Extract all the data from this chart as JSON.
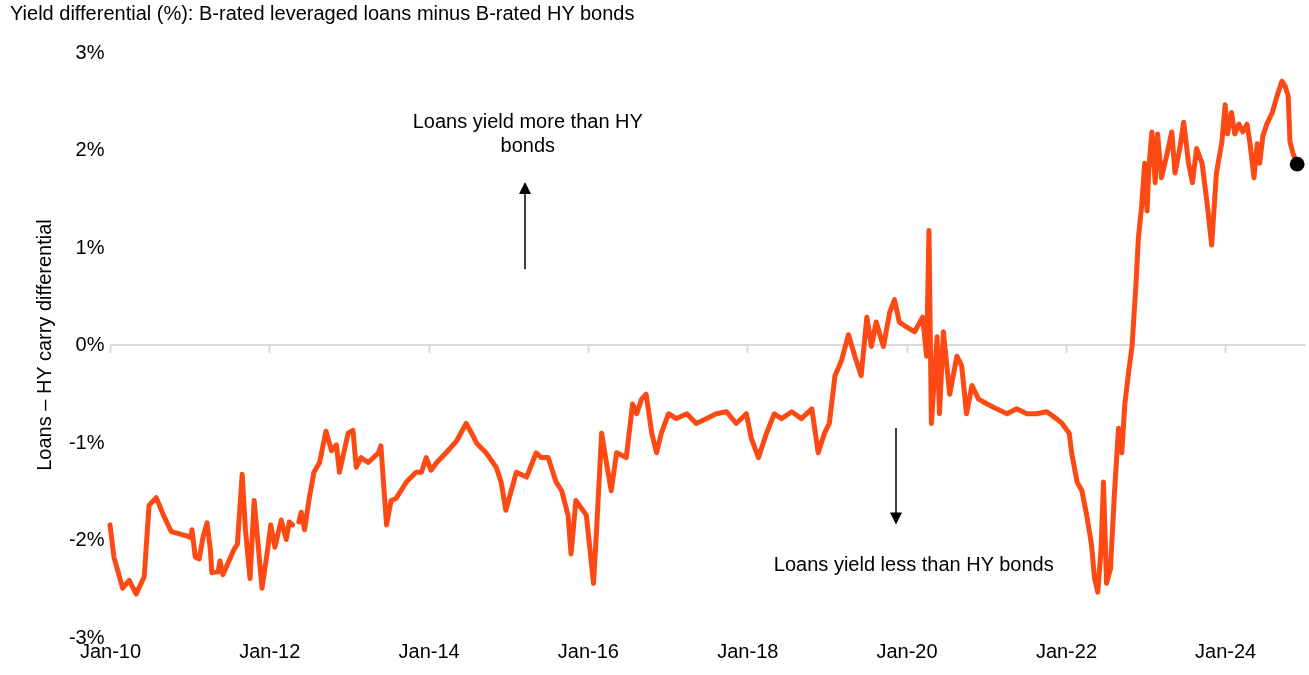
{
  "chart_data": {
    "type": "line",
    "title": "Yield differential (%): B-rated leveraged loans minus B-rated HY bonds",
    "ylabel": "Loans – HY carry differential",
    "annotations": [
      "Loans yield more than HY bonds",
      "Loans yield less than HY bonds"
    ],
    "xlim": [
      "2010-01-01",
      "2025-01-01"
    ],
    "xticks": [
      {
        "value": "2010-01-01",
        "label": "Jan-10"
      },
      {
        "value": "2012-01-01",
        "label": "Jan-12"
      },
      {
        "value": "2014-01-01",
        "label": "Jan-14"
      },
      {
        "value": "2016-01-01",
        "label": "Jan-16"
      },
      {
        "value": "2018-01-01",
        "label": "Jan-18"
      },
      {
        "value": "2020-01-01",
        "label": "Jan-20"
      },
      {
        "value": "2022-01-01",
        "label": "Jan-22"
      },
      {
        "value": "2024-01-01",
        "label": "Jan-24"
      }
    ],
    "ylim": [
      -3,
      3
    ],
    "yticks": [
      {
        "value": -3,
        "label": "-3%"
      },
      {
        "value": -2,
        "label": "-2%"
      },
      {
        "value": -1,
        "label": "-1%"
      },
      {
        "value": 0,
        "label": "0%"
      },
      {
        "value": 1,
        "label": "1%"
      },
      {
        "value": 2,
        "label": "2%"
      },
      {
        "value": 3,
        "label": "3%"
      }
    ],
    "series": [
      {
        "color": "#fd4a14",
        "x": [
          "2010-01-01",
          "2010-01-19",
          "2010-02-28",
          "2010-03-30",
          "2010-05-01",
          "2010-06-07",
          "2010-06-29",
          "2010-08-01",
          "2010-09-03",
          "2010-10-09",
          "2010-12-14",
          "2011-01-08",
          "2011-01-12",
          "2011-01-27",
          "2011-02-14",
          "2011-03-04",
          "2011-03-22",
          "2011-04-06",
          "2011-04-13",
          "2011-05-12",
          "2011-05-20",
          "2011-06-03",
          "2011-07-24",
          "2011-08-08",
          "2011-08-30",
          "2011-09-14",
          "2011-10-05",
          "2011-10-24",
          "2011-11-29",
          "2011-12-25",
          "2012-01-08",
          "2012-01-27",
          "2012-02-25",
          "2012-03-19",
          "2012-04-02",
          "2012-04-17",
          "2012-05-01",
          "2012-05-16",
          "2012-05-27",
          "2012-06-11",
          "2012-07-03",
          "2012-07-24",
          "2012-08-19",
          "2012-09-17",
          "2012-10-13",
          "2012-11-04",
          "2012-11-18",
          "2012-12-28",
          "2013-01-19",
          "2013-02-03",
          "2013-02-25",
          "2013-03-30",
          "2013-05-16",
          "2013-05-27",
          "2013-06-22",
          "2013-07-13",
          "2013-08-04",
          "2013-09-21",
          "2013-11-04",
          "2013-11-29",
          "2013-12-21",
          "2014-01-12",
          "2014-02-07",
          "2014-03-22",
          "2014-05-09",
          "2014-06-22",
          "2014-07-17",
          "2014-08-08",
          "2014-09-21",
          "2014-11-07",
          "2014-11-29",
          "2014-12-21",
          "2015-02-07",
          "2015-03-26",
          "2015-05-09",
          "2015-05-31",
          "2015-07-03",
          "2015-08-08",
          "2015-09-03",
          "2015-10-02",
          "2015-10-16",
          "2015-11-07",
          "2015-12-25",
          "2016-01-27",
          "2016-02-10",
          "2016-03-04",
          "2016-03-26",
          "2016-04-17",
          "2016-05-12",
          "2016-06-25",
          "2016-07-24",
          "2016-08-12",
          "2016-09-03",
          "2016-09-24",
          "2016-10-20",
          "2016-11-11",
          "2016-12-03",
          "2017-01-05",
          "2017-02-10",
          "2017-03-30",
          "2017-05-12",
          "2017-06-29",
          "2017-08-12",
          "2017-09-28",
          "2017-11-11",
          "2017-12-28",
          "2018-01-19",
          "2018-02-21",
          "2018-03-30",
          "2018-05-05",
          "2018-06-07",
          "2018-07-24",
          "2018-09-06",
          "2018-10-24",
          "2018-11-22",
          "2018-12-21",
          "2019-01-12",
          "2019-02-07",
          "2019-03-08",
          "2019-04-10",
          "2019-05-09",
          "2019-06-07",
          "2019-07-03",
          "2019-07-24",
          "2019-08-15",
          "2019-09-17",
          "2019-10-16",
          "2019-11-07",
          "2019-11-29",
          "2020-01-01",
          "2020-02-07",
          "2020-03-15",
          "2020-04-02",
          "2020-04-13",
          "2020-04-24",
          "2020-05-20",
          "2020-05-31",
          "2020-06-18",
          "2020-07-17",
          "2020-08-19",
          "2020-09-10",
          "2020-10-02",
          "2020-10-27",
          "2020-11-26",
          "2021-01-05",
          "2021-02-17",
          "2021-04-06",
          "2021-05-20",
          "2021-07-06",
          "2021-08-19",
          "2021-10-05",
          "2021-11-18",
          "2021-12-14",
          "2022-01-16",
          "2022-01-27",
          "2022-02-21",
          "2022-03-15",
          "2022-04-06",
          "2022-04-28",
          "2022-05-12",
          "2022-05-27",
          "2022-06-11",
          "2022-06-22",
          "2022-07-06",
          "2022-07-24",
          "2022-08-12",
          "2022-08-30",
          "2022-09-14",
          "2022-09-28",
          "2022-10-16",
          "2022-10-31",
          "2022-11-18",
          "2022-11-29",
          "2022-12-14",
          "2022-12-28",
          "2023-01-08",
          "2023-01-16",
          "2023-01-30",
          "2023-02-14",
          "2023-02-25",
          "2023-03-15",
          "2023-04-10",
          "2023-05-01",
          "2023-05-16",
          "2023-06-07",
          "2023-06-25",
          "2023-07-17",
          "2023-08-04",
          "2023-08-23",
          "2023-09-17",
          "2023-10-09",
          "2023-10-31",
          "2023-11-22",
          "2023-12-17",
          "2024-01-01",
          "2024-01-12",
          "2024-01-30",
          "2024-02-14",
          "2024-03-04",
          "2024-03-22",
          "2024-04-10",
          "2024-04-24",
          "2024-05-12",
          "2024-05-27",
          "2024-06-07",
          "2024-06-22",
          "2024-07-10",
          "2024-08-04",
          "2024-08-26",
          "2024-09-17",
          "2024-10-02",
          "2024-10-16",
          "2024-10-24",
          "2024-11-07",
          "2024-11-26"
        ],
        "values": [
          -1.85,
          -2.18,
          -2.5,
          -2.42,
          -2.56,
          -2.38,
          -1.65,
          -1.57,
          -1.75,
          -1.92,
          -1.96,
          -1.98,
          -1.9,
          -2.18,
          -2.2,
          -1.97,
          -1.83,
          -2.1,
          -2.34,
          -2.33,
          -2.22,
          -2.36,
          -2.1,
          -2.05,
          -1.33,
          -1.9,
          -2.4,
          -1.6,
          -2.5,
          -2.1,
          -1.85,
          -2.08,
          -1.8,
          -2.0,
          -1.82,
          -1.85,
          null,
          -1.82,
          -1.72,
          -1.9,
          -1.57,
          -1.31,
          -1.21,
          -0.89,
          -1.09,
          -1.03,
          -1.31,
          -0.91,
          -0.88,
          -1.26,
          -1.16,
          -1.21,
          -1.11,
          -1.04,
          -1.85,
          -1.6,
          -1.58,
          -1.41,
          -1.31,
          -1.31,
          -1.16,
          -1.29,
          -1.21,
          -1.11,
          -0.99,
          -0.81,
          -0.91,
          -1.01,
          -1.11,
          -1.26,
          -1.41,
          -1.7,
          -1.31,
          -1.36,
          -1.11,
          -1.16,
          -1.16,
          -1.41,
          -1.5,
          -1.75,
          -2.15,
          -1.6,
          -1.75,
          -2.45,
          -1.9,
          -0.91,
          -1.21,
          -1.5,
          -1.11,
          -1.16,
          -0.61,
          -0.71,
          -0.56,
          -0.51,
          -0.91,
          -1.11,
          -0.91,
          -0.71,
          -0.76,
          -0.71,
          -0.81,
          -0.76,
          -0.71,
          -0.69,
          -0.81,
          -0.71,
          -0.96,
          -1.16,
          -0.91,
          -0.71,
          -0.76,
          -0.69,
          -0.76,
          -0.66,
          -1.11,
          -0.91,
          -0.81,
          -0.32,
          -0.17,
          0.1,
          -0.12,
          -0.32,
          0.28,
          -0.02,
          0.23,
          -0.02,
          0.33,
          0.46,
          0.23,
          0.18,
          0.13,
          0.28,
          -0.12,
          1.17,
          -0.81,
          0.08,
          -0.71,
          0.13,
          -0.51,
          -0.12,
          -0.22,
          -0.71,
          -0.42,
          -0.56,
          -0.61,
          -0.66,
          -0.71,
          -0.66,
          -0.71,
          -0.71,
          -0.69,
          -0.76,
          -0.81,
          -0.91,
          -1.11,
          -1.41,
          -1.5,
          -1.75,
          -2.05,
          -2.4,
          -2.54,
          -2.1,
          -1.41,
          -2.45,
          -2.3,
          -1.5,
          -0.86,
          -1.11,
          -0.61,
          -0.27,
          -0.02,
          0.62,
          1.09,
          1.42,
          1.86,
          1.37,
          1.81,
          2.18,
          1.66,
          2.16,
          1.71,
          1.96,
          2.18,
          1.76,
          2.01,
          2.28,
          1.86,
          1.66,
          2.01,
          1.86,
          1.47,
          1.02,
          1.76,
          2.08,
          2.46,
          2.16,
          2.38,
          2.16,
          2.26,
          2.18,
          2.26,
          2.06,
          1.71,
          2.06,
          1.86,
          2.14,
          2.26,
          2.38,
          2.55,
          2.7,
          2.65,
          2.55,
          2.08,
          1.96,
          1.86
        ]
      },
      {
        "type": "scatter",
        "color": "#000000",
        "x": [
          "2024-11-26"
        ],
        "values": [
          1.85
        ]
      }
    ]
  }
}
